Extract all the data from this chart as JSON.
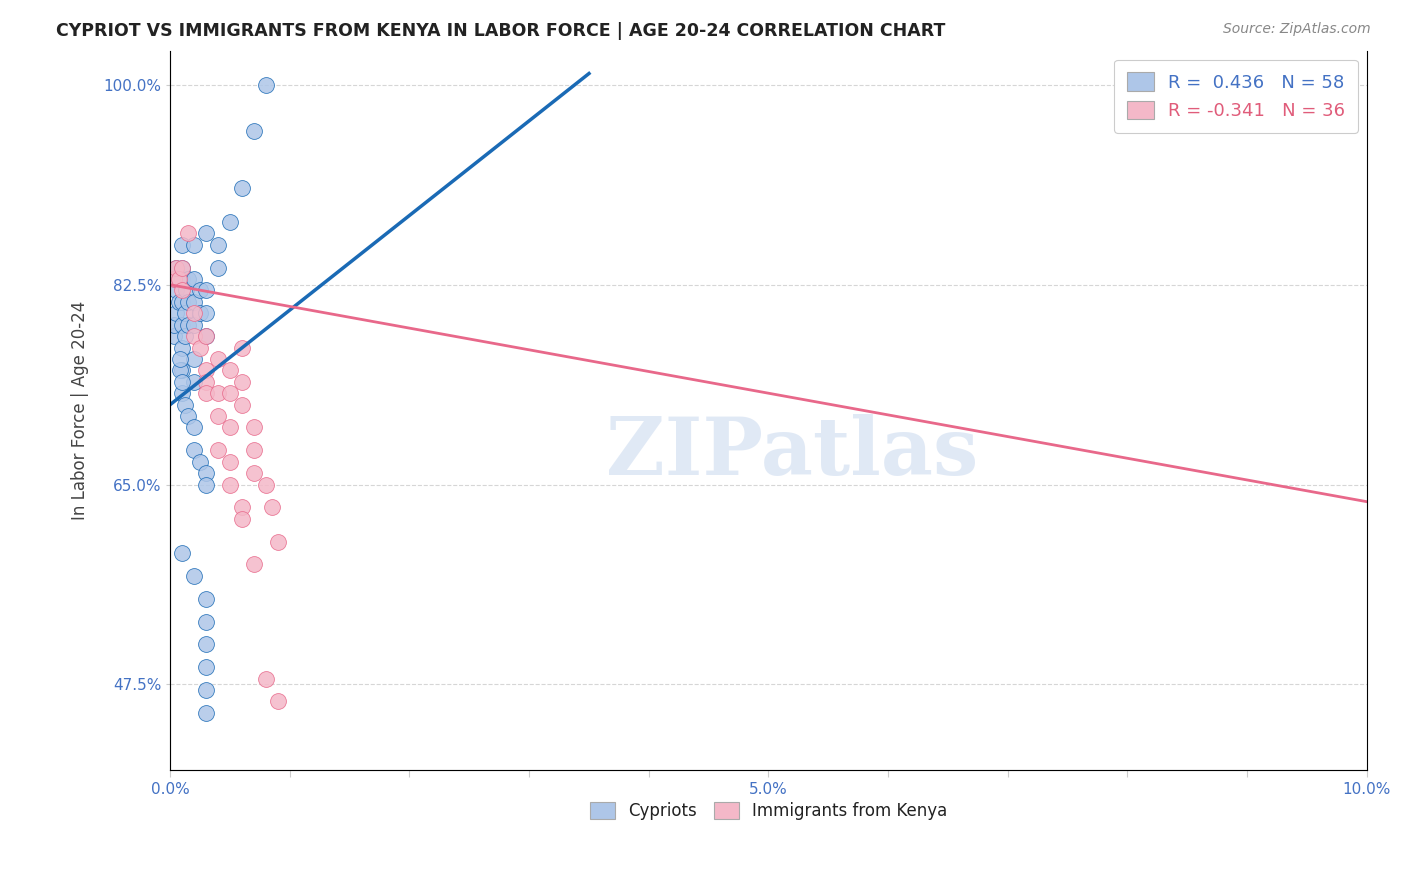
{
  "title": "CYPRIOT VS IMMIGRANTS FROM KENYA IN LABOR FORCE | AGE 20-24 CORRELATION CHART",
  "source": "Source: ZipAtlas.com",
  "ylabel": "In Labor Force | Age 20-24",
  "xlim": [
    0.0,
    0.1
  ],
  "ylim": [
    0.4,
    1.03
  ],
  "xticks": [
    0.0,
    0.01,
    0.02,
    0.03,
    0.04,
    0.05,
    0.06,
    0.07,
    0.08,
    0.09,
    0.1
  ],
  "xticklabels": [
    "0.0%",
    "",
    "",
    "",
    "",
    "",
    "",
    "",
    "",
    "",
    "10.0%"
  ],
  "yticks": [
    0.475,
    0.65,
    0.825,
    1.0
  ],
  "yticklabels": [
    "47.5%",
    "65.0%",
    "82.5%",
    "100.0%"
  ],
  "cypriot_color": "#aec6e8",
  "kenya_color": "#f4b8c8",
  "trend_blue": "#1a6ab5",
  "trend_pink": "#e8688a",
  "legend_blue_text": "#4472c4",
  "legend_pink_text": "#e05c7a",
  "R_blue": 0.436,
  "N_blue": 58,
  "R_pink": -0.341,
  "N_pink": 36,
  "watermark": "ZIPatlas",
  "background_color": "#ffffff",
  "grid_color": "#cccccc",
  "blue_trend_x0": 0.0,
  "blue_trend_y0": 0.72,
  "blue_trend_x1": 0.035,
  "blue_trend_y1": 1.01,
  "pink_trend_x0": 0.0,
  "pink_trend_y0": 0.825,
  "pink_trend_x1": 0.1,
  "pink_trend_y1": 0.635,
  "cypriot_points_x": [
    0.0003,
    0.0003,
    0.0005,
    0.0005,
    0.0005,
    0.0005,
    0.0007,
    0.0007,
    0.001,
    0.001,
    0.001,
    0.001,
    0.001,
    0.001,
    0.001,
    0.0012,
    0.0012,
    0.0013,
    0.0015,
    0.0015,
    0.0015,
    0.002,
    0.002,
    0.002,
    0.002,
    0.002,
    0.002,
    0.0025,
    0.0025,
    0.003,
    0.003,
    0.003,
    0.003,
    0.004,
    0.004,
    0.005,
    0.006,
    0.007,
    0.008,
    0.0008,
    0.0008,
    0.001,
    0.001,
    0.0012,
    0.0015,
    0.002,
    0.002,
    0.0025,
    0.003,
    0.003,
    0.001,
    0.002,
    0.003,
    0.003,
    0.003,
    0.003,
    0.003,
    0.003
  ],
  "cypriot_points_y": [
    0.78,
    0.79,
    0.8,
    0.82,
    0.83,
    0.84,
    0.81,
    0.83,
    0.75,
    0.77,
    0.79,
    0.81,
    0.83,
    0.84,
    0.86,
    0.78,
    0.8,
    0.82,
    0.79,
    0.81,
    0.83,
    0.74,
    0.76,
    0.79,
    0.81,
    0.83,
    0.86,
    0.8,
    0.82,
    0.78,
    0.8,
    0.82,
    0.87,
    0.84,
    0.86,
    0.88,
    0.91,
    0.96,
    1.0,
    0.75,
    0.76,
    0.73,
    0.74,
    0.72,
    0.71,
    0.7,
    0.68,
    0.67,
    0.66,
    0.65,
    0.59,
    0.57,
    0.55,
    0.53,
    0.51,
    0.49,
    0.47,
    0.45
  ],
  "kenya_points_x": [
    0.0003,
    0.0005,
    0.0007,
    0.001,
    0.001,
    0.0015,
    0.002,
    0.002,
    0.0025,
    0.003,
    0.003,
    0.003,
    0.004,
    0.004,
    0.004,
    0.005,
    0.005,
    0.005,
    0.006,
    0.006,
    0.006,
    0.007,
    0.007,
    0.007,
    0.008,
    0.0085,
    0.009,
    0.003,
    0.004,
    0.005,
    0.005,
    0.006,
    0.006,
    0.007,
    0.008,
    0.009
  ],
  "kenya_points_y": [
    0.83,
    0.84,
    0.83,
    0.84,
    0.82,
    0.87,
    0.8,
    0.78,
    0.77,
    0.75,
    0.74,
    0.73,
    0.76,
    0.73,
    0.71,
    0.75,
    0.73,
    0.7,
    0.77,
    0.74,
    0.72,
    0.7,
    0.68,
    0.66,
    0.65,
    0.63,
    0.6,
    0.78,
    0.68,
    0.67,
    0.65,
    0.63,
    0.62,
    0.58,
    0.48,
    0.46
  ]
}
